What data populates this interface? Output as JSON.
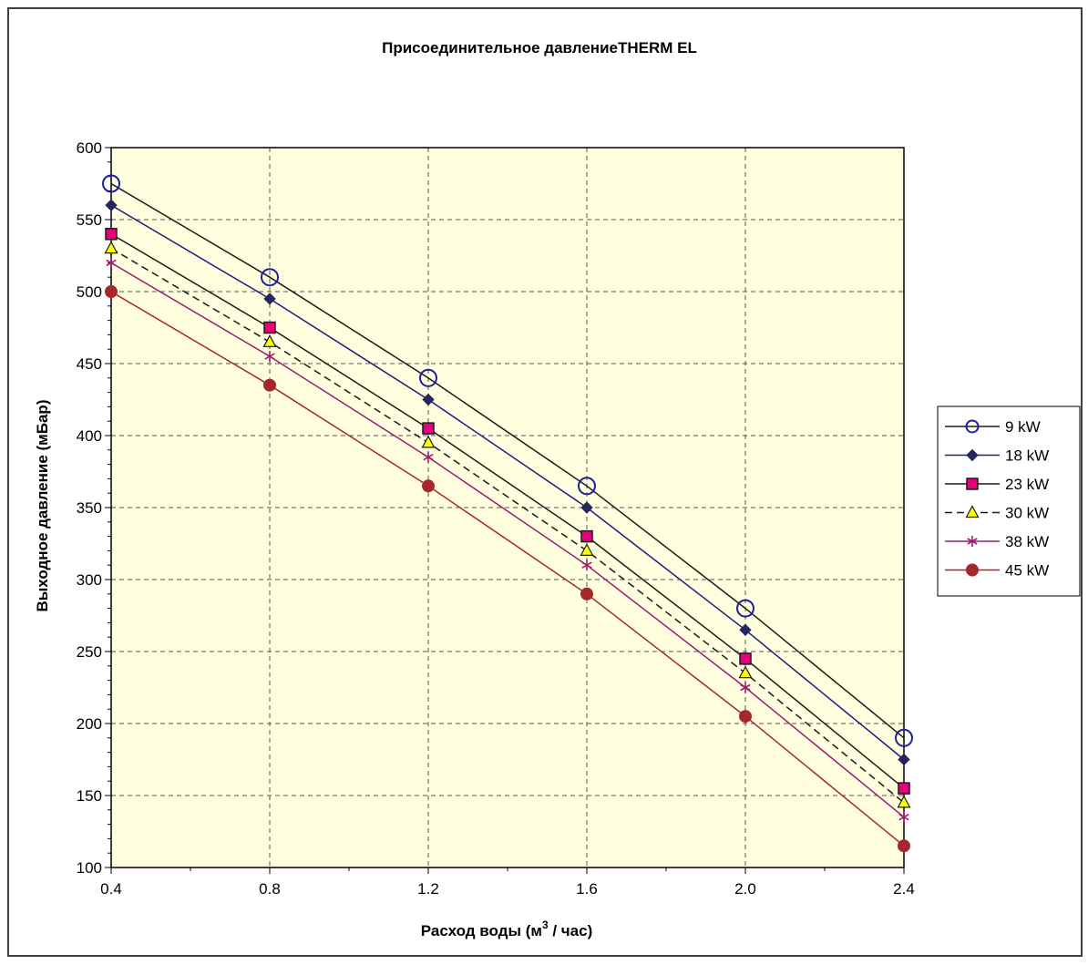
{
  "chart_data": {
    "type": "line",
    "title": "Присоединительное давлениеTHERM EL",
    "xlabel_prefix": "Расход воды (м",
    "xlabel_sup": "3",
    "xlabel_suffix": " / час)",
    "ylabel": "Выходное давление (мБар)",
    "x": [
      0.4,
      0.8,
      1.2,
      1.6,
      2.0,
      2.4
    ],
    "x_tick_labels": [
      "0.4",
      "0.8",
      "1.2",
      "1.6",
      "2.0",
      "2.4"
    ],
    "y_ticks": [
      100,
      150,
      200,
      250,
      300,
      350,
      400,
      450,
      500,
      550,
      600
    ],
    "xlim": [
      0.4,
      2.4
    ],
    "ylim": [
      100,
      600
    ],
    "grid": true,
    "legend_position": "right",
    "plot_background": "#FFFFE0",
    "series": [
      {
        "name": "9 kW",
        "values": [
          575,
          510,
          440,
          365,
          280,
          190
        ],
        "color": "#1a1a1a",
        "marker": "circle-open",
        "marker_color": "#1F1F9F",
        "dash": false
      },
      {
        "name": "18 kW",
        "values": [
          560,
          495,
          425,
          350,
          265,
          175
        ],
        "color": "#1F1F7A",
        "marker": "diamond",
        "marker_color": "#26265E",
        "dash": false
      },
      {
        "name": "23 kW",
        "values": [
          540,
          475,
          405,
          330,
          245,
          155
        ],
        "color": "#1a1a1a",
        "marker": "square",
        "marker_color": "#E6007E",
        "dash": false
      },
      {
        "name": "30 kW",
        "values": [
          530,
          465,
          395,
          320,
          235,
          145
        ],
        "color": "#1a1a1a",
        "marker": "triangle",
        "marker_color": "#FFFF00",
        "dash": true
      },
      {
        "name": "38 kW",
        "values": [
          520,
          455,
          385,
          310,
          225,
          135
        ],
        "color": "#9B1B6E",
        "marker": "star",
        "marker_color": "#9B1B6E",
        "dash": false
      },
      {
        "name": "45 kW",
        "values": [
          500,
          435,
          365,
          290,
          205,
          115
        ],
        "color": "#A5282A",
        "marker": "circle",
        "marker_color": "#A5282A",
        "dash": false
      }
    ]
  }
}
